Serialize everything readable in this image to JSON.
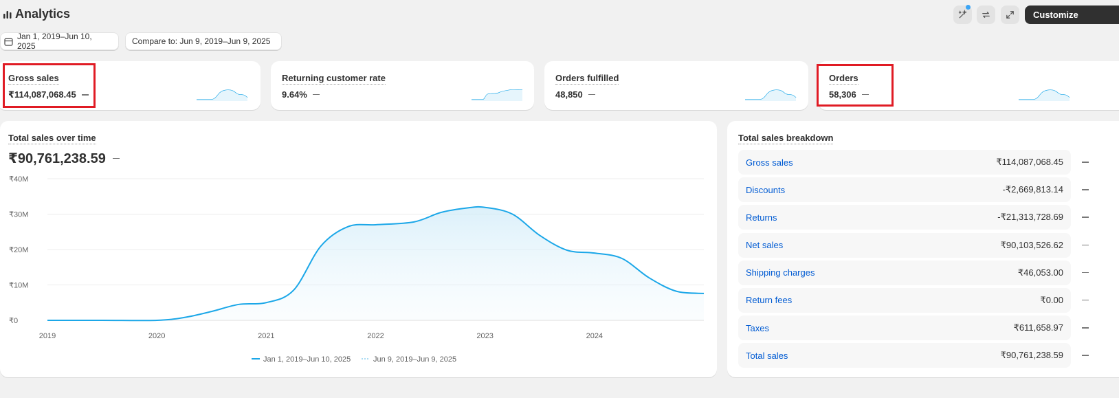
{
  "header": {
    "title": "Analytics",
    "customize_label": "Customize"
  },
  "date_range": {
    "primary": "Jan 1, 2019–Jun 10, 2025",
    "compare": "Compare to: Jun 9, 2019–Jun 9, 2025"
  },
  "metrics": [
    {
      "label": "Gross sales",
      "value": "₹114,087,068.45"
    },
    {
      "label": "Returning customer rate",
      "value": "9.64%"
    },
    {
      "label": "Orders fulfilled",
      "value": "48,850"
    },
    {
      "label": "Orders",
      "value": "58,306"
    }
  ],
  "chart": {
    "title": "Total sales over time",
    "total": "₹90,761,238.59",
    "legend_primary": "Jan 1, 2019–Jun 10, 2025",
    "legend_compare": "Jun 9, 2019–Jun 9, 2025",
    "color": "#1ba7e8"
  },
  "chart_data": {
    "type": "area",
    "x": [
      2019.0,
      2019.5,
      2020.0,
      2020.25,
      2020.5,
      2020.75,
      2021.0,
      2021.25,
      2021.5,
      2021.75,
      2022.0,
      2022.35,
      2022.6,
      2022.85,
      2023.0,
      2023.25,
      2023.5,
      2023.75,
      2024.0,
      2024.25,
      2024.5,
      2024.75,
      2025.0
    ],
    "series": [
      {
        "name": "Jan 1, 2019–Jun 10, 2025",
        "values": [
          0,
          0,
          0,
          0.8,
          2.5,
          4.5,
          5.0,
          8.5,
          21,
          26.5,
          27,
          27.8,
          30.5,
          31.8,
          31.9,
          30,
          24,
          19.8,
          19,
          17.5,
          12,
          8.2,
          7.6
        ]
      }
    ],
    "x_ticks": [
      "2019",
      "2020",
      "2021",
      "2022",
      "2023",
      "2024"
    ],
    "y_ticks": [
      "₹0",
      "₹10M",
      "₹20M",
      "₹30M",
      "₹40M"
    ],
    "ylim": [
      0,
      40
    ],
    "xlim": [
      2019,
      2025
    ],
    "grid": true,
    "legend": "bottom-center"
  },
  "breakdown": {
    "title": "Total sales breakdown",
    "rows": [
      {
        "name": "Gross sales",
        "value": "₹114,087,068.45"
      },
      {
        "name": "Discounts",
        "value": "-₹2,669,813.14"
      },
      {
        "name": "Returns",
        "value": "-₹21,313,728.69"
      },
      {
        "name": "Net sales",
        "value": "₹90,103,526.62"
      },
      {
        "name": "Shipping charges",
        "value": "₹46,053.00"
      },
      {
        "name": "Return fees",
        "value": "₹0.00"
      },
      {
        "name": "Taxes",
        "value": "₹611,658.97"
      },
      {
        "name": "Total sales",
        "value": "₹90,761,238.59"
      }
    ]
  }
}
